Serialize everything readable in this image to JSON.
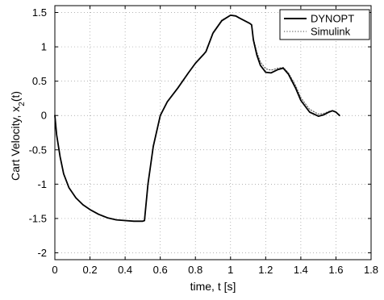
{
  "chart_data": {
    "type": "line",
    "xlabel": "time, t [s]",
    "ylabel_main": "Cart Velocity, x",
    "ylabel_sub": "2",
    "ylabel_tail": "(t)",
    "xlim": [
      0,
      1.8
    ],
    "ylim": [
      -2.1,
      1.6
    ],
    "xticks": [
      0,
      0.2,
      0.4,
      0.6,
      0.8,
      1,
      1.2,
      1.4,
      1.6,
      1.8
    ],
    "xtick_labels": [
      "0",
      "0.2",
      "0.4",
      "0.6",
      "0.8",
      "1",
      "1.2",
      "1.4",
      "1.6",
      "1.8"
    ],
    "yticks": [
      1.5,
      1,
      0.5,
      0,
      -0.5,
      -1,
      -1.5,
      -2
    ],
    "ytick_labels": [
      "1.5",
      "1",
      "0.5",
      "0",
      "-0.5",
      "-1",
      "-1.5",
      "-2"
    ],
    "grid": true,
    "legend_position": "top-right",
    "series": [
      {
        "name": "DYNOPT",
        "style": "solid",
        "color": "#000000",
        "x": [
          0,
          0.01,
          0.03,
          0.05,
          0.08,
          0.12,
          0.16,
          0.2,
          0.25,
          0.3,
          0.35,
          0.4,
          0.45,
          0.5,
          0.51,
          0.53,
          0.56,
          0.6,
          0.64,
          0.7,
          0.76,
          0.8,
          0.85,
          0.86,
          0.9,
          0.95,
          1.0,
          1.03,
          1.05,
          1.08,
          1.11,
          1.12,
          1.13,
          1.15,
          1.17,
          1.2,
          1.23,
          1.27,
          1.3,
          1.33,
          1.37,
          1.4,
          1.45,
          1.5,
          1.53,
          1.56,
          1.58,
          1.6,
          1.62
        ],
        "y": [
          0,
          -0.28,
          -0.6,
          -0.85,
          -1.05,
          -1.2,
          -1.3,
          -1.37,
          -1.44,
          -1.49,
          -1.52,
          -1.53,
          -1.54,
          -1.54,
          -1.53,
          -1.0,
          -0.45,
          0.0,
          0.2,
          0.4,
          0.62,
          0.76,
          0.9,
          0.93,
          1.2,
          1.38,
          1.46,
          1.45,
          1.42,
          1.38,
          1.34,
          1.32,
          1.1,
          0.88,
          0.73,
          0.63,
          0.62,
          0.67,
          0.69,
          0.6,
          0.4,
          0.22,
          0.05,
          -0.01,
          0.01,
          0.05,
          0.07,
          0.05,
          0.0
        ]
      },
      {
        "name": "Simulink",
        "style": "dotted",
        "color": "#666666",
        "x": [
          0,
          0.01,
          0.03,
          0.05,
          0.08,
          0.12,
          0.16,
          0.2,
          0.25,
          0.3,
          0.35,
          0.4,
          0.45,
          0.5,
          0.51,
          0.53,
          0.56,
          0.6,
          0.64,
          0.7,
          0.76,
          0.8,
          0.85,
          0.86,
          0.9,
          0.95,
          1.0,
          1.03,
          1.05,
          1.08,
          1.11,
          1.12,
          1.13,
          1.15,
          1.17,
          1.2,
          1.23,
          1.27,
          1.3,
          1.33,
          1.37,
          1.4,
          1.45,
          1.5,
          1.53,
          1.56,
          1.58,
          1.6,
          1.62
        ],
        "y": [
          0,
          -0.28,
          -0.6,
          -0.85,
          -1.05,
          -1.2,
          -1.3,
          -1.37,
          -1.44,
          -1.49,
          -1.52,
          -1.53,
          -1.54,
          -1.54,
          -1.53,
          -1.0,
          -0.45,
          0.0,
          0.2,
          0.4,
          0.62,
          0.76,
          0.9,
          0.93,
          1.21,
          1.39,
          1.46,
          1.45,
          1.42,
          1.38,
          1.34,
          1.32,
          1.12,
          0.92,
          0.78,
          0.68,
          0.66,
          0.69,
          0.7,
          0.62,
          0.44,
          0.26,
          0.09,
          0.02,
          0.03,
          0.06,
          0.07,
          0.05,
          0.01
        ]
      }
    ]
  }
}
